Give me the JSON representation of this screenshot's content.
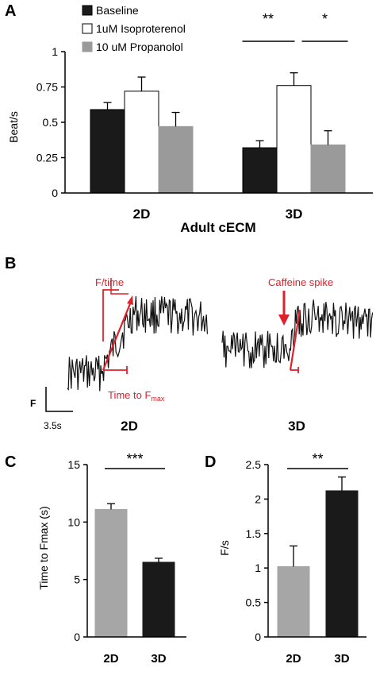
{
  "colors": {
    "baseline": "#1a1a1a",
    "iso": "#ffffff",
    "prop": "#9a9a9a",
    "gray_bar": "#a6a6a6",
    "black_bar": "#1a1a1a",
    "annot_red": "#e0202a"
  },
  "panels": {
    "a": {
      "letter": "A"
    },
    "b": {
      "letter": "B"
    },
    "c": {
      "letter": "C"
    },
    "d": {
      "letter": "D"
    }
  },
  "chart_data": [
    {
      "panel": "A",
      "type": "bar",
      "categories": [
        "2D",
        "3D"
      ],
      "xlabel": "Adult cECM",
      "ylabel": "Beat/s",
      "ylim": [
        0,
        1
      ],
      "yticks": [
        0,
        0.25,
        0.5,
        0.75,
        1
      ],
      "ytick_labels": [
        "0",
        "0.25",
        "0.5",
        "0.75",
        "1"
      ],
      "legend_position": "top-left",
      "series": [
        {
          "name": "Baseline",
          "values": [
            0.59,
            0.32
          ],
          "errors": [
            0.05,
            0.05
          ]
        },
        {
          "name": "1uM Isoproterenol",
          "values": [
            0.72,
            0.76
          ],
          "errors": [
            0.1,
            0.09
          ]
        },
        {
          "name": "10 uM Propanolol",
          "values": [
            0.47,
            0.34
          ],
          "errors": [
            0.1,
            0.1
          ]
        }
      ],
      "significance": [
        {
          "text": "**",
          "compares": "3D Baseline vs 1uM Isoproterenol"
        },
        {
          "text": "*",
          "compares": "3D 1uM Isoproterenol vs 10 uM Propanolol"
        }
      ]
    },
    {
      "panel": "C",
      "type": "bar",
      "categories": [
        "2D",
        "3D"
      ],
      "ylabel": "Time to Fmax  (s)",
      "ylim": [
        0,
        15
      ],
      "yticks": [
        0,
        5,
        10,
        15
      ],
      "ytick_labels": [
        "0",
        "5",
        "10",
        "15"
      ],
      "values": [
        11.1,
        6.5
      ],
      "errors": [
        0.5,
        0.35
      ],
      "bar_colors": [
        "#a6a6a6",
        "#1a1a1a"
      ],
      "significance": [
        {
          "text": "***",
          "compares": "2D vs 3D"
        }
      ]
    },
    {
      "panel": "D",
      "type": "bar",
      "categories": [
        "2D",
        "3D"
      ],
      "ylabel": "F/s",
      "ylim": [
        0,
        2.5
      ],
      "yticks": [
        0,
        0.5,
        1,
        1.5,
        2,
        2.5
      ],
      "ytick_labels": [
        "0",
        "0.5",
        "1",
        "1.5",
        "2",
        "2.5"
      ],
      "values": [
        1.02,
        2.12
      ],
      "errors": [
        0.3,
        0.2
      ],
      "bar_colors": [
        "#a6a6a6",
        "#1a1a1a"
      ],
      "significance": [
        {
          "text": "**",
          "compares": "2D vs 3D"
        }
      ]
    }
  ],
  "panel_b": {
    "trace_labels": [
      "2D",
      "3D"
    ],
    "annotations": {
      "f_time": "F/time",
      "caffeine_spike": "Caffeine spike",
      "time_to_fmax_main": "Time to F",
      "time_to_fmax_sub": "max"
    },
    "scale_bar": {
      "y_label": "F",
      "x_label": "3.5s"
    }
  }
}
